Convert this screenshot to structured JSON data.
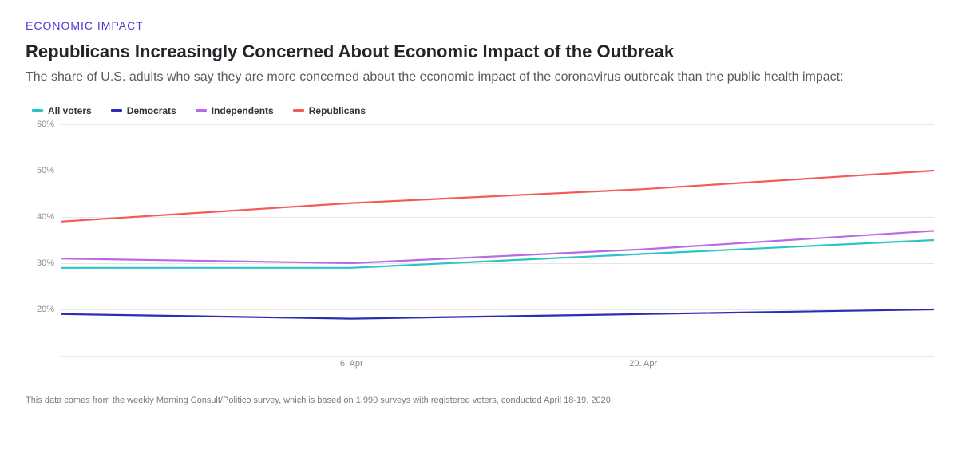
{
  "kicker": {
    "text": "ECONOMIC IMPACT",
    "color": "#4a3bd1"
  },
  "headline": "Republicans Increasingly Concerned About Economic Impact of the Outbreak",
  "subhead": "The share of U.S. adults who say they are more concerned about the economic impact of the coronavirus outbreak than the public health impact:",
  "chart": {
    "type": "line",
    "ylim": [
      10,
      60
    ],
    "ytick_step": 10,
    "y_suffix": "%",
    "grid_color": "#e6e6e6",
    "background_color": "#ffffff",
    "line_width": 2.2,
    "x_points": [
      0,
      0.333,
      0.667,
      1.0
    ],
    "x_ticks": [
      {
        "pos": 0.333,
        "label": "6. Apr"
      },
      {
        "pos": 0.667,
        "label": "20. Apr"
      }
    ],
    "series": [
      {
        "name": "All voters",
        "color": "#2bc4c4",
        "values": [
          29,
          29,
          32,
          35
        ]
      },
      {
        "name": "Democrats",
        "color": "#2b2db5",
        "values": [
          19,
          18,
          19,
          20
        ]
      },
      {
        "name": "Independents",
        "color": "#b969e6",
        "values": [
          31,
          30,
          33,
          37
        ]
      },
      {
        "name": "Republicans",
        "color": "#f25c54",
        "values": [
          39,
          43,
          46,
          50
        ]
      }
    ]
  },
  "footnote": "This data comes from the weekly Morning Consult/Politico survey, which is based on 1,990 surveys with registered voters, conducted April 18-19, 2020.",
  "typography": {
    "kicker_fontsize": 14,
    "headline_fontsize": 22,
    "subhead_fontsize": 16,
    "legend_fontsize": 12,
    "axis_fontsize": 11,
    "footnote_fontsize": 11
  }
}
